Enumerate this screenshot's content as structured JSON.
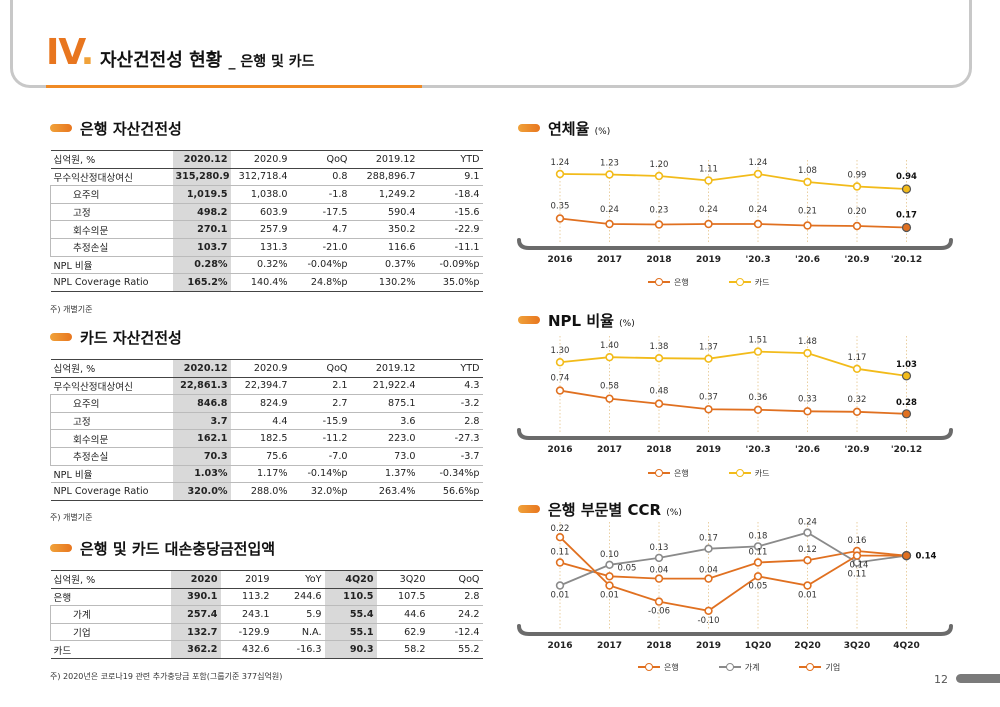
{
  "header": {
    "roman": "IV",
    "title": "자산건전성 현황",
    "subtitle": "_ 은행 및 카드"
  },
  "bank_assets": {
    "title": "은행 자산건전성",
    "headers": [
      "십억원, %",
      "2020.12",
      "2020.9",
      "QoQ",
      "2019.12",
      "YTD"
    ],
    "rows": [
      [
        "무수익산정대상여신",
        "315,280.9",
        "312,718.4",
        "0.8",
        "288,896.7",
        "9.1"
      ],
      [
        "요주의",
        "1,019.5",
        "1,038.0",
        "-1.8",
        "1,249.2",
        "-18.4"
      ],
      [
        "고정",
        "498.2",
        "603.9",
        "-17.5",
        "590.4",
        "-15.6"
      ],
      [
        "회수의문",
        "270.1",
        "257.9",
        "4.7",
        "350.2",
        "-22.9"
      ],
      [
        "추정손실",
        "103.7",
        "131.3",
        "-21.0",
        "116.6",
        "-11.1"
      ],
      [
        "NPL 비율",
        "0.28%",
        "0.32%",
        "-0.04%p",
        "0.37%",
        "-0.09%p"
      ],
      [
        "NPL Coverage Ratio",
        "165.2%",
        "140.4%",
        "24.8%p",
        "130.2%",
        "35.0%p"
      ]
    ],
    "note": "주) 개별기준"
  },
  "card_assets": {
    "title": "카드 자산건전성",
    "headers": [
      "십억원, %",
      "2020.12",
      "2020.9",
      "QoQ",
      "2019.12",
      "YTD"
    ],
    "rows": [
      [
        "무수익산정대상여신",
        "22,861.3",
        "22,394.7",
        "2.1",
        "21,922.4",
        "4.3"
      ],
      [
        "요주의",
        "846.8",
        "824.9",
        "2.7",
        "875.1",
        "-3.2"
      ],
      [
        "고정",
        "3.7",
        "4.4",
        "-15.9",
        "3.6",
        "2.8"
      ],
      [
        "회수의문",
        "162.1",
        "182.5",
        "-11.2",
        "223.0",
        "-27.3"
      ],
      [
        "추정손실",
        "70.3",
        "75.6",
        "-7.0",
        "73.0",
        "-3.7"
      ],
      [
        "NPL 비율",
        "1.03%",
        "1.17%",
        "-0.14%p",
        "1.37%",
        "-0.34%p"
      ],
      [
        "NPL Coverage Ratio",
        "320.0%",
        "288.0%",
        "32.0%p",
        "263.4%",
        "56.6%p"
      ]
    ],
    "note": "주) 개별기준"
  },
  "provisions": {
    "title": "은행 및 카드 대손충당금전입액",
    "headers": [
      "십억원, %",
      "2020",
      "2019",
      "YoY",
      "4Q20",
      "3Q20",
      "QoQ"
    ],
    "rows": [
      [
        "은행",
        "390.1",
        "113.2",
        "244.6",
        "110.5",
        "107.5",
        "2.8"
      ],
      [
        "가계",
        "257.4",
        "243.1",
        "5.9",
        "55.4",
        "44.6",
        "24.2"
      ],
      [
        "기업",
        "132.7",
        "-129.9",
        "N.A.",
        "55.1",
        "62.9",
        "-12.4"
      ],
      [
        "카드",
        "362.2",
        "432.6",
        "-16.3",
        "90.3",
        "58.2",
        "55.2"
      ]
    ],
    "note": "주) 2020년은 코로나19 관련 추가충당금 포함(그룹기준 377십억원)"
  },
  "colors": {
    "bank": "#e07020",
    "card": "#f2bb1a",
    "household": "#8a8a8a",
    "axis": "#6b6b6b"
  },
  "chart_data": [
    {
      "type": "line",
      "title": "연체율",
      "unit": "(%)",
      "categories": [
        "2016",
        "2017",
        "2018",
        "2019",
        "'20.3",
        "'20.6",
        "'20.9",
        "'20.12"
      ],
      "series": [
        {
          "name": "카드",
          "values": [
            1.24,
            1.23,
            1.2,
            1.11,
            1.24,
            1.08,
            0.99,
            0.94
          ]
        },
        {
          "name": "은행",
          "values": [
            0.35,
            0.24,
            0.23,
            0.24,
            0.24,
            0.21,
            0.2,
            0.17
          ]
        }
      ],
      "legend": [
        "은행",
        "카드"
      ],
      "ylim": [
        0,
        1.4
      ]
    },
    {
      "type": "line",
      "title": "NPL 비율",
      "unit": "(%)",
      "categories": [
        "2016",
        "2017",
        "2018",
        "2019",
        "'20.3",
        "'20.6",
        "'20.9",
        "'20.12"
      ],
      "series": [
        {
          "name": "카드",
          "values": [
            1.3,
            1.4,
            1.38,
            1.37,
            1.51,
            1.48,
            1.17,
            1.03
          ]
        },
        {
          "name": "은행",
          "values": [
            0.74,
            0.58,
            0.48,
            0.37,
            0.36,
            0.33,
            0.32,
            0.28
          ]
        }
      ],
      "legend": [
        "은행",
        "카드"
      ],
      "ylim": [
        0,
        1.7
      ]
    },
    {
      "type": "line",
      "title": "은행 부문별 CCR",
      "unit": "(%)",
      "categories": [
        "2016",
        "2017",
        "2018",
        "2019",
        "1Q20",
        "2Q20",
        "3Q20",
        "4Q20"
      ],
      "series": [
        {
          "name": "은행",
          "values": [
            0.11,
            0.05,
            0.04,
            0.04,
            0.11,
            0.12,
            0.16,
            0.14
          ]
        },
        {
          "name": "가계",
          "values": [
            0.01,
            0.1,
            0.13,
            0.17,
            0.18,
            0.24,
            0.11,
            0.14
          ]
        },
        {
          "name": "기업",
          "values": [
            0.22,
            0.01,
            -0.06,
            -0.1,
            0.05,
            0.01,
            0.14,
            0.14
          ]
        }
      ],
      "legend": [
        "은행",
        "가계",
        "기업"
      ],
      "ylim": [
        -0.14,
        0.26
      ]
    }
  ],
  "page_number": "12"
}
